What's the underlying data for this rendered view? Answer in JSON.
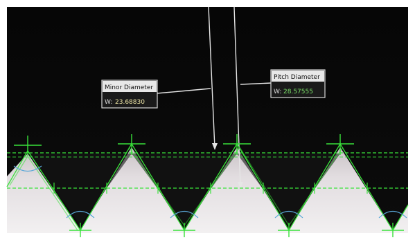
{
  "measurements": {
    "minor_diameter": {
      "title": "Minor Diameter",
      "label_prefix": "W:",
      "value": "23.68830"
    },
    "pitch_diameter": {
      "title": "Pitch Diameter",
      "label_prefix": "W:",
      "value": "28.57555"
    }
  },
  "colors": {
    "overlay": "#39e23a",
    "arc": "#5aa8d8",
    "background_top": "#050505",
    "thread_body": "#d9d4d6",
    "leader_line": "#e6e6e6"
  },
  "icons": [
    "crosshair-marker-icon"
  ]
}
